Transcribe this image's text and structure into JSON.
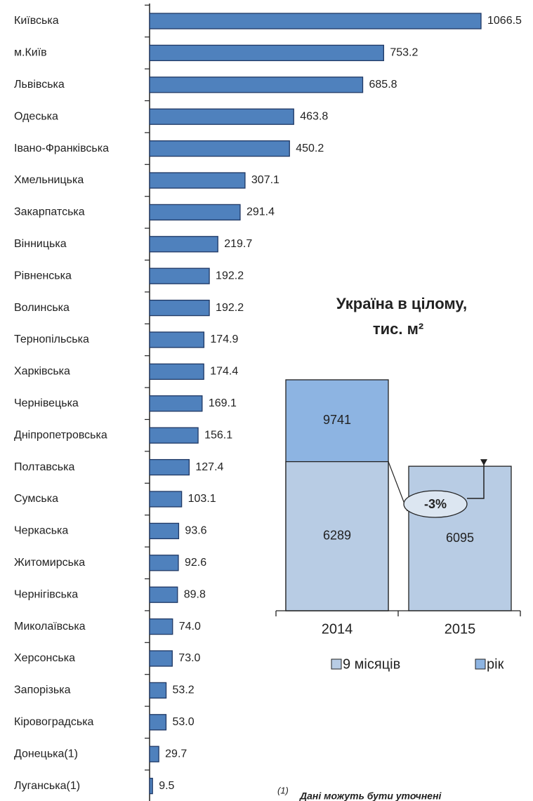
{
  "chart_data": [
    {
      "type": "hbar",
      "categories": [
        "Київська",
        "м.Київ",
        "Львівська",
        "Одеська",
        "Івано-Франківська",
        "Хмельницька",
        "Закарпатська",
        "Вінницька",
        "Рівненська",
        "Волинська",
        "Тернопільська",
        "Харківська",
        "Чернівецька",
        "Дніпропетровська",
        "Полтавська",
        "Сумська",
        "Черкаська",
        "Житомирська",
        "Чернігівська",
        "Миколаївська",
        "Херсонська",
        "Запорізька",
        "Кіровоградська",
        "Донецька(1)",
        "Луганська(1)"
      ],
      "values": [
        1066.5,
        753.2,
        685.8,
        463.8,
        450.2,
        307.1,
        291.4,
        219.7,
        192.2,
        192.2,
        174.9,
        174.4,
        169.1,
        156.1,
        127.4,
        103.1,
        93.6,
        92.6,
        89.8,
        74.0,
        73.0,
        53.2,
        53.0,
        29.7,
        9.5
      ],
      "value_labels": [
        "1066.5",
        "753.2",
        "685.8",
        "463.8",
        "450.2",
        "307.1",
        "291.4",
        "219.7",
        "192.2",
        "192.2",
        "174.9",
        "174.4",
        "169.1",
        "156.1",
        "127.4",
        "103.1",
        "93.6",
        "92.6",
        "89.8",
        "74.0",
        "73.0",
        "53.2",
        "53.0",
        "29.7",
        "9.5"
      ],
      "color": "#4f81bd"
    },
    {
      "type": "overlap-bar",
      "title": [
        "Україна в цілому,",
        "тис. м²"
      ],
      "categories": [
        "2014",
        "2015"
      ],
      "series": [
        {
          "name": "рік",
          "color": "#8db4e2",
          "values": [
            9741,
            null
          ]
        },
        {
          "name": "9 місяців",
          "color": "#b8cce4",
          "values": [
            6289,
            6095
          ]
        }
      ],
      "annotation": "-3%"
    }
  ],
  "footnote": {
    "mark": "(1)",
    "text": "Дані можуть бути уточнені"
  }
}
